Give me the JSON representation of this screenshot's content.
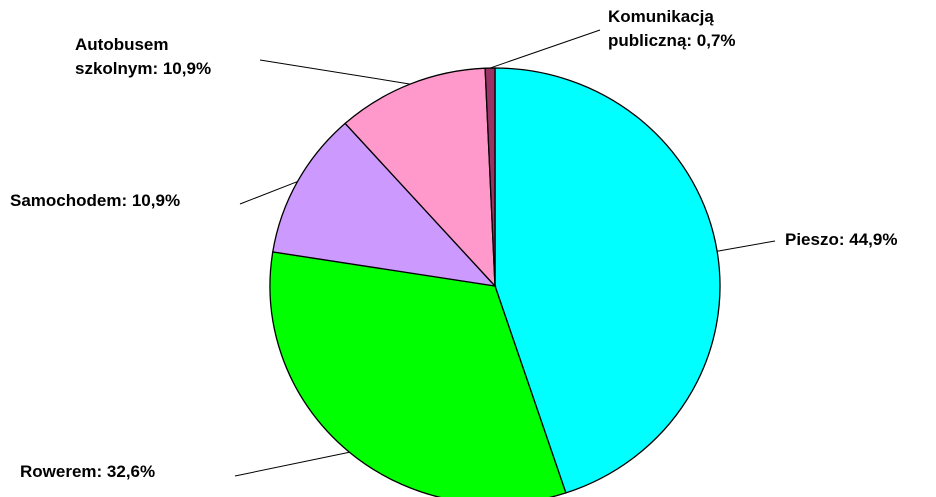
{
  "chart_data": {
    "type": "pie",
    "values": [
      44.9,
      32.6,
      10.9,
      10.9,
      0.7
    ],
    "value_labels": [
      [
        "Pieszo: 44,9%"
      ],
      [
        "Rowerem: 32,6%"
      ],
      [
        "Samochodem: 10,9%"
      ],
      [
        "Autobusem",
        "szkolnym: 10,9%"
      ],
      [
        "Komunikacją",
        "publiczną: 0,7%"
      ]
    ],
    "colors": [
      "#00ffff",
      "#00ff00",
      "#cc99ff",
      "#ff99cc",
      "#993366"
    ]
  }
}
